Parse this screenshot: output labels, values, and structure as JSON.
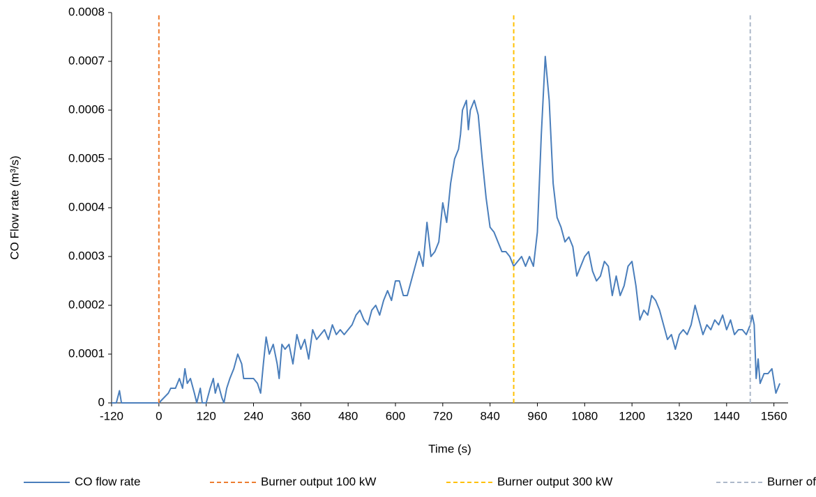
{
  "chart_data": {
    "type": "line",
    "x_label": "Time (s)",
    "y_label": "CO Flow rate (m³/s)",
    "xlim": [
      -120,
      1596
    ],
    "ylim": [
      0,
      0.0008
    ],
    "xticks": [
      -120,
      0,
      120,
      240,
      360,
      480,
      600,
      720,
      840,
      960,
      1080,
      1200,
      1320,
      1440,
      1560
    ],
    "yticks": [
      0,
      0.0001,
      0.0002,
      0.0003,
      0.0004,
      0.0005,
      0.0006,
      0.0007,
      0.0008
    ],
    "legend": "bottom",
    "series": [
      {
        "name": "CO flow rate",
        "color": "#4a7ebb",
        "dashed": false,
        "x": [
          -120,
          -108,
          -100,
          -95,
          0,
          24,
          30,
          42,
          52,
          60,
          66,
          72,
          80,
          90,
          96,
          105,
          110,
          120,
          130,
          138,
          143,
          150,
          160,
          165,
          172,
          180,
          190,
          200,
          210,
          215,
          240,
          250,
          258,
          265,
          272,
          280,
          290,
          300,
          305,
          312,
          320,
          330,
          340,
          350,
          360,
          370,
          380,
          390,
          400,
          410,
          420,
          430,
          440,
          450,
          460,
          470,
          480,
          490,
          500,
          510,
          520,
          530,
          540,
          550,
          560,
          570,
          580,
          590,
          600,
          610,
          620,
          630,
          640,
          650,
          660,
          670,
          680,
          690,
          700,
          710,
          720,
          730,
          740,
          750,
          760,
          765,
          770,
          780,
          785,
          790,
          800,
          810,
          820,
          830,
          840,
          850,
          860,
          870,
          880,
          890,
          900,
          910,
          920,
          930,
          940,
          950,
          960,
          970,
          980,
          990,
          1000,
          1010,
          1020,
          1030,
          1040,
          1050,
          1060,
          1070,
          1080,
          1090,
          1100,
          1110,
          1120,
          1130,
          1140,
          1150,
          1160,
          1170,
          1180,
          1190,
          1200,
          1210,
          1220,
          1230,
          1240,
          1250,
          1260,
          1270,
          1280,
          1290,
          1300,
          1310,
          1320,
          1330,
          1340,
          1350,
          1360,
          1370,
          1380,
          1390,
          1400,
          1410,
          1420,
          1430,
          1440,
          1450,
          1460,
          1470,
          1480,
          1490,
          1500,
          1505,
          1510,
          1515,
          1520,
          1525,
          1535,
          1545,
          1555,
          1565,
          1575
        ],
        "values": [
          0,
          0,
          2.5e-05,
          0,
          0,
          2e-05,
          3e-05,
          3e-05,
          5e-05,
          3e-05,
          7e-05,
          4e-05,
          5e-05,
          2e-05,
          0,
          3e-05,
          0,
          0,
          3e-05,
          5e-05,
          2e-05,
          4e-05,
          1e-05,
          0,
          3e-05,
          5e-05,
          7e-05,
          0.0001,
          8e-05,
          5e-05,
          5e-05,
          4e-05,
          2e-05,
          8e-05,
          0.000135,
          0.0001,
          0.00012,
          8e-05,
          5e-05,
          0.00012,
          0.00011,
          0.00012,
          8e-05,
          0.00014,
          0.00011,
          0.00013,
          9e-05,
          0.00015,
          0.00013,
          0.00014,
          0.00015,
          0.00013,
          0.00016,
          0.00014,
          0.00015,
          0.00014,
          0.00015,
          0.00016,
          0.00018,
          0.00019,
          0.00017,
          0.00016,
          0.00019,
          0.0002,
          0.00018,
          0.00021,
          0.00023,
          0.00021,
          0.00025,
          0.00025,
          0.00022,
          0.00022,
          0.00025,
          0.00028,
          0.00031,
          0.00028,
          0.00037,
          0.0003,
          0.00031,
          0.00033,
          0.00041,
          0.00037,
          0.00045,
          0.0005,
          0.00052,
          0.00055,
          0.0006,
          0.00062,
          0.00056,
          0.0006,
          0.00062,
          0.00059,
          0.0005,
          0.00042,
          0.00036,
          0.00035,
          0.00033,
          0.00031,
          0.00031,
          0.0003,
          0.00028,
          0.00029,
          0.0003,
          0.00028,
          0.0003,
          0.00028,
          0.00035,
          0.00055,
          0.00071,
          0.00062,
          0.00045,
          0.00038,
          0.00036,
          0.00033,
          0.00034,
          0.00032,
          0.00026,
          0.00028,
          0.0003,
          0.00031,
          0.00027,
          0.00025,
          0.00026,
          0.00029,
          0.00028,
          0.00022,
          0.00026,
          0.00022,
          0.00024,
          0.00028,
          0.00029,
          0.00024,
          0.00017,
          0.00019,
          0.00018,
          0.00022,
          0.00021,
          0.00019,
          0.00016,
          0.00013,
          0.00014,
          0.00011,
          0.00014,
          0.00015,
          0.00014,
          0.00016,
          0.0002,
          0.00017,
          0.00014,
          0.00016,
          0.00015,
          0.00017,
          0.00016,
          0.00018,
          0.00015,
          0.00017,
          0.00014,
          0.00015,
          0.00015,
          0.00014,
          0.00016,
          0.00018,
          0.00016,
          5e-05,
          9e-05,
          4e-05,
          6e-05,
          6e-05,
          7e-05,
          2e-05,
          4e-05
        ]
      },
      {
        "name": "Burner output 100 kW",
        "color": "#ed7d31",
        "dashed": true,
        "x": [
          0,
          0
        ],
        "values": [
          0,
          0.0008
        ]
      },
      {
        "name": "Burner output 300 kW",
        "color": "#ffc000",
        "dashed": true,
        "x": [
          900,
          900
        ],
        "values": [
          0,
          0.0008
        ]
      },
      {
        "name": "Burner off",
        "color": "#adb9ca",
        "dashed": true,
        "x": [
          1500,
          1500
        ],
        "values": [
          0,
          0.0008
        ]
      }
    ]
  }
}
